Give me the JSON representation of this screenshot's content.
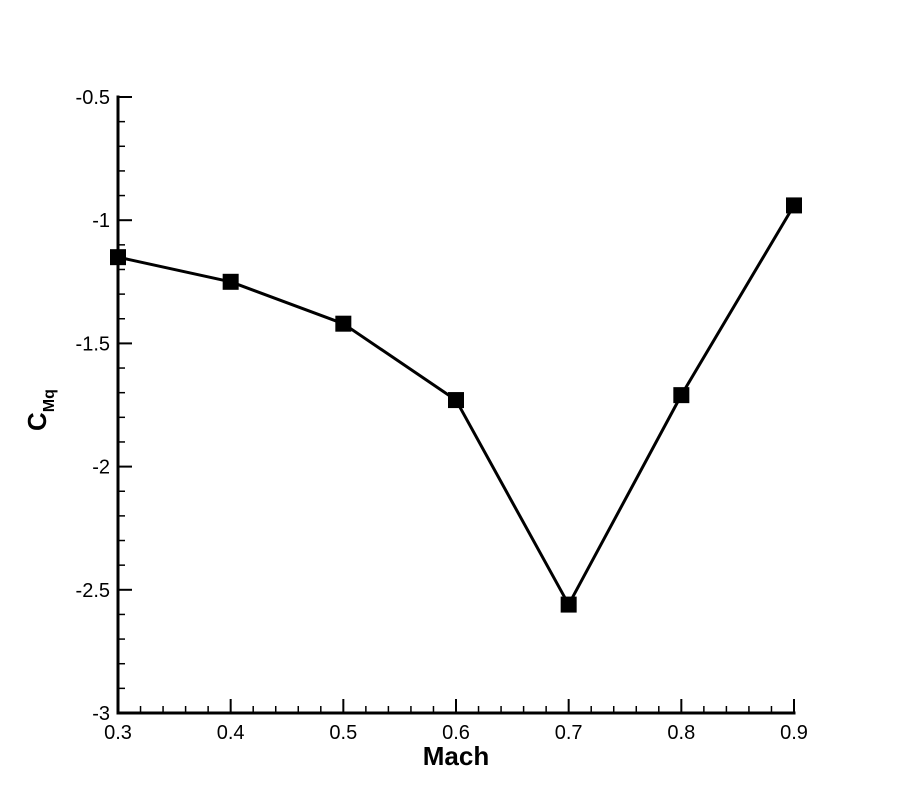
{
  "chart_data": {
    "type": "line",
    "title": "",
    "xlabel": "Mach",
    "ylabel": {
      "main": "C",
      "subscript": "Mq"
    },
    "xlim": [
      0.3,
      0.9
    ],
    "ylim": [
      -3,
      -0.5
    ],
    "xticks": [
      0.3,
      0.4,
      0.5,
      0.6,
      0.7,
      0.8,
      0.9
    ],
    "xtick_labels": [
      "0.3",
      "0.4",
      "0.5",
      "0.6",
      "0.7",
      "0.8",
      "0.9"
    ],
    "yticks": [
      -3,
      -2.5,
      -2,
      -1.5,
      -1,
      -0.5
    ],
    "ytick_labels": [
      "-3",
      "-2.5",
      "-2",
      "-1.5",
      "-1",
      "-0.5"
    ],
    "x_minor_step": 0.02,
    "y_minor_step": 0.1,
    "grid": false,
    "legend": false,
    "series": [
      {
        "x": [
          0.3,
          0.4,
          0.5,
          0.6,
          0.7,
          0.8,
          0.9
        ],
        "y": [
          -1.15,
          -1.25,
          -1.42,
          -1.73,
          -2.56,
          -1.71,
          -0.94
        ],
        "color": "#000000",
        "marker": "square"
      }
    ]
  }
}
